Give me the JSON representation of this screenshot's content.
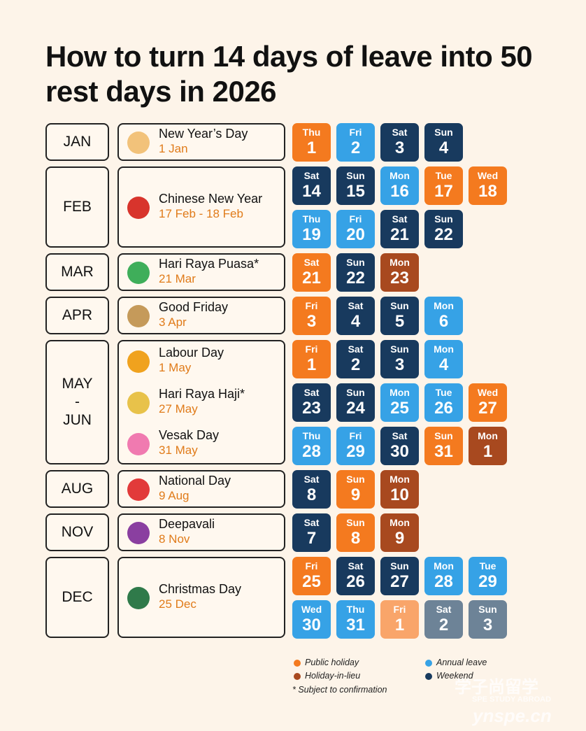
{
  "title": "How to turn 14 days of leave into 50 rest days in 2026",
  "rows": [
    {
      "month": [
        "JAN"
      ],
      "holidays": [
        {
          "name": "New Year’s Day",
          "date": "1 Jan"
        }
      ],
      "days": [
        [
          {
            "weekday": "Thu",
            "day": 1,
            "color": "#f47a1f"
          },
          {
            "weekday": "Fri",
            "day": 2,
            "color": "#36a2e6"
          },
          {
            "weekday": "Sat",
            "day": 3,
            "color": "#183a5e"
          },
          {
            "weekday": "Sun",
            "day": 4,
            "color": "#183a5e"
          }
        ]
      ]
    },
    {
      "month": [
        "FEB"
      ],
      "holidays": [
        {
          "name": "Chinese New Year",
          "date": "17 Feb - 18 Feb"
        }
      ],
      "days": [
        [
          {
            "weekday": "Sat",
            "day": 14,
            "color": "#183a5e"
          },
          {
            "weekday": "Sun",
            "day": 15,
            "color": "#183a5e"
          },
          {
            "weekday": "Mon",
            "day": 16,
            "color": "#36a2e6"
          },
          {
            "weekday": "Tue",
            "day": 17,
            "color": "#f47a1f"
          },
          {
            "weekday": "Wed",
            "day": 18,
            "color": "#f47a1f"
          }
        ],
        [
          {
            "weekday": "Thu",
            "day": 19,
            "color": "#36a2e6"
          },
          {
            "weekday": "Fri",
            "day": 20,
            "color": "#36a2e6"
          },
          {
            "weekday": "Sat",
            "day": 21,
            "color": "#183a5e"
          },
          {
            "weekday": "Sun",
            "day": 22,
            "color": "#183a5e"
          }
        ]
      ]
    },
    {
      "month": [
        "MAR"
      ],
      "holidays": [
        {
          "name": "Hari Raya Puasa*",
          "date": "21 Mar"
        }
      ],
      "days": [
        [
          {
            "weekday": "Sat",
            "day": 21,
            "color": "#f47a1f"
          },
          {
            "weekday": "Sun",
            "day": 22,
            "color": "#183a5e"
          },
          {
            "weekday": "Mon",
            "day": 23,
            "color": "#a8491f"
          }
        ]
      ]
    },
    {
      "month": [
        "APR"
      ],
      "holidays": [
        {
          "name": "Good Friday",
          "date": "3 Apr"
        }
      ],
      "days": [
        [
          {
            "weekday": "Fri",
            "day": 3,
            "color": "#f47a1f"
          },
          {
            "weekday": "Sat",
            "day": 4,
            "color": "#183a5e"
          },
          {
            "weekday": "Sun",
            "day": 5,
            "color": "#183a5e"
          },
          {
            "weekday": "Mon",
            "day": 6,
            "color": "#36a2e6"
          }
        ]
      ]
    },
    {
      "month": [
        "MAY",
        "-",
        "JUN"
      ],
      "holidays": [
        {
          "name": "Labour Day",
          "date": "1 May"
        },
        {
          "name": "Hari Raya Haji*",
          "date": "27 May"
        },
        {
          "name": "Vesak Day",
          "date": "31 May"
        }
      ],
      "days": [
        [
          {
            "weekday": "Fri",
            "day": 1,
            "color": "#f47a1f"
          },
          {
            "weekday": "Sat",
            "day": 2,
            "color": "#183a5e"
          },
          {
            "weekday": "Sun",
            "day": 3,
            "color": "#183a5e"
          },
          {
            "weekday": "Mon",
            "day": 4,
            "color": "#36a2e6"
          }
        ],
        [
          {
            "weekday": "Sat",
            "day": 23,
            "color": "#183a5e"
          },
          {
            "weekday": "Sun",
            "day": 24,
            "color": "#183a5e"
          },
          {
            "weekday": "Mon",
            "day": 25,
            "color": "#36a2e6"
          },
          {
            "weekday": "Tue",
            "day": 26,
            "color": "#36a2e6"
          },
          {
            "weekday": "Wed",
            "day": 27,
            "color": "#f47a1f"
          }
        ],
        [
          {
            "weekday": "Thu",
            "day": 28,
            "color": "#36a2e6"
          },
          {
            "weekday": "Fri",
            "day": 29,
            "color": "#36a2e6"
          },
          {
            "weekday": "Sat",
            "day": 30,
            "color": "#183a5e"
          },
          {
            "weekday": "Sun",
            "day": 31,
            "color": "#f47a1f"
          },
          {
            "weekday": "Mon",
            "day": 1,
            "color": "#a8491f"
          }
        ]
      ]
    },
    {
      "month": [
        "AUG"
      ],
      "holidays": [
        {
          "name": "National Day",
          "date": "9 Aug"
        }
      ],
      "days": [
        [
          {
            "weekday": "Sat",
            "day": 8,
            "color": "#183a5e"
          },
          {
            "weekday": "Sun",
            "day": 9,
            "color": "#f47a1f"
          },
          {
            "weekday": "Mon",
            "day": 10,
            "color": "#a8491f"
          }
        ]
      ]
    },
    {
      "month": [
        "NOV"
      ],
      "holidays": [
        {
          "name": "Deepavali",
          "date": "8 Nov"
        }
      ],
      "days": [
        [
          {
            "weekday": "Sat",
            "day": 7,
            "color": "#183a5e"
          },
          {
            "weekday": "Sun",
            "day": 8,
            "color": "#f47a1f"
          },
          {
            "weekday": "Mon",
            "day": 9,
            "color": "#a8491f"
          }
        ]
      ]
    },
    {
      "month": [
        "DEC"
      ],
      "holidays": [
        {
          "name": "Christmas Day",
          "date": "25 Dec"
        }
      ],
      "days": [
        [
          {
            "weekday": "Fri",
            "day": 25,
            "color": "#f47a1f"
          },
          {
            "weekday": "Sat",
            "day": 26,
            "color": "#183a5e"
          },
          {
            "weekday": "Sun",
            "day": 27,
            "color": "#183a5e"
          },
          {
            "weekday": "Mon",
            "day": 28,
            "color": "#36a2e6"
          },
          {
            "weekday": "Tue",
            "day": 29,
            "color": "#36a2e6"
          }
        ],
        [
          {
            "weekday": "Wed",
            "day": 30,
            "color": "#36a2e6"
          },
          {
            "weekday": "Thu",
            "day": 31,
            "color": "#36a2e6"
          },
          {
            "weekday": "Fri",
            "day": 1,
            "color": "#f9a56a"
          },
          {
            "weekday": "Sat",
            "day": 2,
            "color": "#6d8397"
          },
          {
            "weekday": "Sun",
            "day": 3,
            "color": "#6d8397"
          }
        ]
      ]
    }
  ],
  "legend": {
    "items": [
      {
        "label": "Public holiday",
        "color": "#f47a1f"
      },
      {
        "label": "Holiday-in-lieu",
        "color": "#a8491f"
      },
      {
        "label": "Annual leave",
        "color": "#36a2e6"
      },
      {
        "label": "Weekend",
        "color": "#183a5e"
      }
    ],
    "note": "*  Subject to confirmation"
  },
  "watermark": {
    "brand": "学子尚留学",
    "tagline": "SPE STUDY ABROAD",
    "site": "ynspe.cn"
  }
}
